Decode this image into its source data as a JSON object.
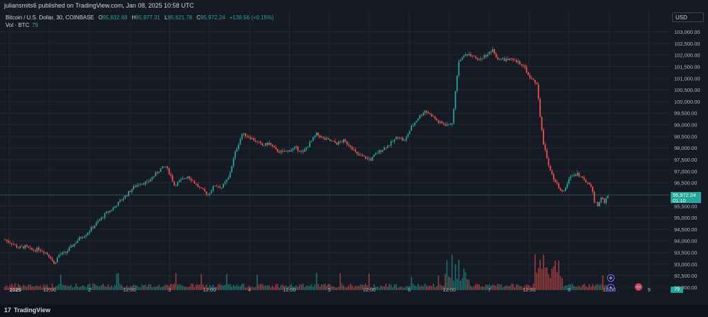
{
  "header": {
    "published": "juliansmits6 published on TradingView.com, Jan 08, 2025 10:58 UTC"
  },
  "legend": {
    "symbol": "Bitcoin / U.S. Dollar, 30, COINBASE",
    "o_label": "O",
    "o": "95,832.68",
    "h_label": "H",
    "h": "95,977.31",
    "l_label": "L",
    "l": "95,621.78",
    "c_label": "C",
    "c": "95,972.24",
    "change": "+139.56 (+0.15%)",
    "vol_label": "Vol · BTC",
    "vol_value": "79"
  },
  "currency_button": "USD",
  "last_price": {
    "price": "95,972.24",
    "countdown": "01:10"
  },
  "volume_tag": "79",
  "footer": {
    "brand": "TradingView",
    "brand_mark": "17"
  },
  "colors": {
    "up": "#26a69a",
    "down": "#ef5350",
    "background": "#161a25",
    "grid": "#232632"
  },
  "icons": [
    "plus-circle-icon",
    "lightning-icon",
    "flag-event-icon",
    "tradingview-logo-icon"
  ],
  "chart_data": {
    "type": "candlestick",
    "title": "Bitcoin / U.S. Dollar, 30, COINBASE",
    "ylim": [
      92000,
      103000
    ],
    "y_ticks": [
      "103,000.00",
      "102,500.00",
      "102,000.00",
      "101,500.00",
      "101,000.00",
      "100,500.00",
      "100,000.00",
      "99,500.00",
      "99,000.00",
      "98,500.00",
      "98,000.00",
      "97,500.00",
      "97,000.00",
      "96,500.00",
      "96,000.00",
      "95,500.00",
      "95,000.00",
      "94,500.00",
      "94,000.00",
      "93,500.00",
      "93,000.00",
      "92,500.00",
      "92,000.00"
    ],
    "x_ticks": [
      "2025",
      "12:00",
      "2",
      "12:00",
      "3",
      "12:00",
      "4",
      "12:00",
      "5",
      "12:00",
      "6",
      "12:00",
      "7",
      "12:00",
      "8",
      "12:00",
      "9"
    ],
    "grid": true,
    "price_path": [
      [
        0,
        94050
      ],
      [
        4,
        93900
      ],
      [
        8,
        93700
      ],
      [
        12,
        93750
      ],
      [
        16,
        93600
      ],
      [
        20,
        93650
      ],
      [
        24,
        93500
      ],
      [
        27,
        93300
      ],
      [
        29,
        93000
      ],
      [
        32,
        93400
      ],
      [
        36,
        93500
      ],
      [
        40,
        93800
      ],
      [
        44,
        94100
      ],
      [
        48,
        94300
      ],
      [
        52,
        94600
      ],
      [
        56,
        94900
      ],
      [
        60,
        95200
      ],
      [
        64,
        95400
      ],
      [
        68,
        95700
      ],
      [
        72,
        96000
      ],
      [
        76,
        96300
      ],
      [
        80,
        96500
      ],
      [
        84,
        96500
      ],
      [
        88,
        96800
      ],
      [
        92,
        97100
      ],
      [
        95,
        97200
      ],
      [
        98,
        96800
      ],
      [
        100,
        96400
      ],
      [
        104,
        96600
      ],
      [
        108,
        96800
      ],
      [
        112,
        96500
      ],
      [
        116,
        96200
      ],
      [
        120,
        96000
      ],
      [
        124,
        96400
      ],
      [
        128,
        96300
      ],
      [
        132,
        96700
      ],
      [
        136,
        97800
      ],
      [
        140,
        98600
      ],
      [
        144,
        98500
      ],
      [
        148,
        98300
      ],
      [
        152,
        98100
      ],
      [
        156,
        98200
      ],
      [
        160,
        97900
      ],
      [
        164,
        97800
      ],
      [
        168,
        97900
      ],
      [
        172,
        98000
      ],
      [
        176,
        97800
      ],
      [
        180,
        98200
      ],
      [
        184,
        98600
      ],
      [
        188,
        98400
      ],
      [
        192,
        98300
      ],
      [
        196,
        98200
      ],
      [
        200,
        98300
      ],
      [
        204,
        98100
      ],
      [
        208,
        97700
      ],
      [
        212,
        97600
      ],
      [
        216,
        97500
      ],
      [
        220,
        97800
      ],
      [
        224,
        98000
      ],
      [
        228,
        98200
      ],
      [
        232,
        98500
      ],
      [
        236,
        98300
      ],
      [
        240,
        98900
      ],
      [
        244,
        99300
      ],
      [
        248,
        99600
      ],
      [
        252,
        99400
      ],
      [
        256,
        99100
      ],
      [
        260,
        99000
      ],
      [
        264,
        99100
      ],
      [
        268,
        101700
      ],
      [
        272,
        102100
      ],
      [
        276,
        101900
      ],
      [
        280,
        101800
      ],
      [
        284,
        102000
      ],
      [
        288,
        102200
      ],
      [
        290,
        101900
      ],
      [
        294,
        101800
      ],
      [
        298,
        101800
      ],
      [
        302,
        101700
      ],
      [
        306,
        101600
      ],
      [
        310,
        101000
      ],
      [
        314,
        100800
      ],
      [
        316,
        99400
      ],
      [
        318,
        98100
      ],
      [
        320,
        97600
      ],
      [
        322,
        97000
      ],
      [
        326,
        96400
      ],
      [
        330,
        96100
      ],
      [
        334,
        96800
      ],
      [
        338,
        96900
      ],
      [
        342,
        96600
      ],
      [
        346,
        96400
      ],
      [
        348,
        95700
      ],
      [
        350,
        95500
      ],
      [
        352,
        95900
      ],
      [
        354,
        95600
      ],
      [
        356,
        95972
      ]
    ],
    "candle_count": 357,
    "volume_peaks_btc_relative": [
      0.28,
      0.12,
      0.5,
      0.25,
      0.3,
      0.55,
      0.9,
      0.75,
      0.6
    ]
  }
}
